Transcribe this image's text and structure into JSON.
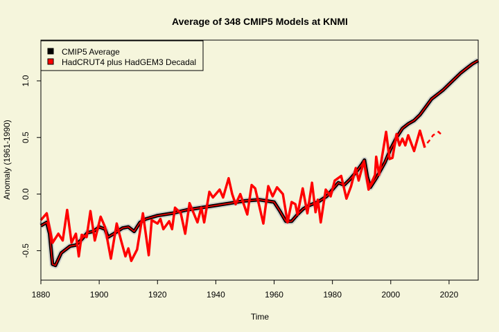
{
  "chart_data": {
    "type": "line",
    "title": "Average of 348 CMIP5 Models at KNMI",
    "xlabel": "Time",
    "ylabel": "Anomaly (1961-1990)",
    "xlim": [
      1880,
      2030
    ],
    "ylim": [
      -0.76,
      1.36
    ],
    "xticks": [
      1880,
      1900,
      1920,
      1940,
      1960,
      1980,
      2000,
      2020
    ],
    "yticks": [
      -0.5,
      0.0,
      0.5,
      1.0
    ],
    "ytick_labels": [
      "-0.5",
      "0.0",
      "0.5",
      "1.0"
    ],
    "grid": false,
    "legend_position": "top-left",
    "background_color": "#f5f5dc",
    "series": [
      {
        "name": "CMIP5 Average",
        "color": "#000000",
        "spread_color": "#c8c8c8",
        "x": [
          1880,
          1882,
          1883,
          1884,
          1885,
          1887,
          1890,
          1892,
          1894,
          1896,
          1898,
          1900,
          1902,
          1903,
          1905,
          1908,
          1910,
          1912,
          1914,
          1916,
          1920,
          1925,
          1930,
          1935,
          1940,
          1945,
          1950,
          1955,
          1960,
          1962,
          1964,
          1966,
          1968,
          1970,
          1972,
          1975,
          1978,
          1980,
          1982,
          1984,
          1986,
          1988,
          1990,
          1991,
          1992,
          1993,
          1995,
          1998,
          2000,
          2002,
          2004,
          2006,
          2008,
          2010,
          2012,
          2014,
          2016,
          2018,
          2020,
          2022,
          2024,
          2026,
          2028,
          2030
        ],
        "y": [
          -0.28,
          -0.25,
          -0.35,
          -0.62,
          -0.63,
          -0.52,
          -0.46,
          -0.45,
          -0.4,
          -0.34,
          -0.33,
          -0.29,
          -0.31,
          -0.38,
          -0.35,
          -0.3,
          -0.29,
          -0.33,
          -0.25,
          -0.22,
          -0.19,
          -0.17,
          -0.14,
          -0.12,
          -0.1,
          -0.08,
          -0.06,
          -0.05,
          -0.07,
          -0.15,
          -0.24,
          -0.24,
          -0.18,
          -0.13,
          -0.1,
          -0.07,
          -0.02,
          0.04,
          0.1,
          0.08,
          0.13,
          0.19,
          0.26,
          0.3,
          0.15,
          0.06,
          0.14,
          0.28,
          0.4,
          0.5,
          0.58,
          0.62,
          0.65,
          0.7,
          0.77,
          0.84,
          0.88,
          0.92,
          0.97,
          1.02,
          1.07,
          1.11,
          1.15,
          1.18
        ]
      },
      {
        "name": "HadCRUT4 plus HadGEM3 Decadal",
        "color": "#ff0000",
        "x": [
          1880,
          1882,
          1884,
          1886,
          1887.5,
          1889,
          1890.5,
          1892,
          1893,
          1894,
          1895.7,
          1897,
          1898.5,
          1900.5,
          1902,
          1904,
          1906,
          1907.5,
          1909,
          1910,
          1911,
          1913,
          1915,
          1917,
          1918,
          1920,
          1921,
          1922,
          1924,
          1925,
          1926,
          1928,
          1929.5,
          1931,
          1933.7,
          1935,
          1936,
          1937.8,
          1939,
          1941.3,
          1942.5,
          1944.4,
          1945.6,
          1946.8,
          1948.4,
          1950.8,
          1952.3,
          1953.5,
          1956.3,
          1958,
          1959.5,
          1961,
          1963,
          1964.6,
          1966,
          1967.3,
          1968,
          1969.8,
          1971.4,
          1973,
          1974.2,
          1975,
          1976,
          1977.7,
          1979.4,
          1980.8,
          1983,
          1984.8,
          1986.4,
          1988,
          1989,
          1990.8,
          1992.4,
          1994.6,
          1995,
          1996,
          1998.4,
          1999.6,
          2000.6,
          2002,
          2003,
          2004,
          2005,
          2006,
          2008,
          2010,
          2011.7
        ],
        "y": [
          -0.23,
          -0.17,
          -0.43,
          -0.35,
          -0.41,
          -0.14,
          -0.43,
          -0.35,
          -0.55,
          -0.36,
          -0.38,
          -0.15,
          -0.41,
          -0.2,
          -0.29,
          -0.57,
          -0.26,
          -0.41,
          -0.55,
          -0.48,
          -0.59,
          -0.49,
          -0.17,
          -0.54,
          -0.23,
          -0.26,
          -0.22,
          -0.31,
          -0.24,
          -0.31,
          -0.12,
          -0.17,
          -0.35,
          -0.08,
          -0.25,
          -0.12,
          -0.25,
          0.02,
          -0.03,
          0.04,
          -0.03,
          0.14,
          0.0,
          -0.09,
          0.0,
          -0.18,
          0.08,
          0.05,
          -0.26,
          0.07,
          -0.02,
          0.06,
          0.0,
          -0.25,
          -0.07,
          -0.09,
          -0.18,
          0.05,
          -0.17,
          0.1,
          -0.16,
          -0.05,
          -0.25,
          0.04,
          -0.02,
          0.12,
          0.16,
          -0.04,
          0.07,
          0.23,
          0.12,
          0.29,
          0.04,
          0.17,
          0.33,
          0.17,
          0.55,
          0.31,
          0.32,
          0.53,
          0.43,
          0.49,
          0.43,
          0.52,
          0.38,
          0.56,
          0.41
        ],
        "forecast_x": [
          2012.5,
          2013.5,
          2014.5,
          2016.4,
          2017.6
        ],
        "forecast_y": [
          0.45,
          0.48,
          0.52,
          0.55,
          0.52
        ]
      }
    ]
  }
}
